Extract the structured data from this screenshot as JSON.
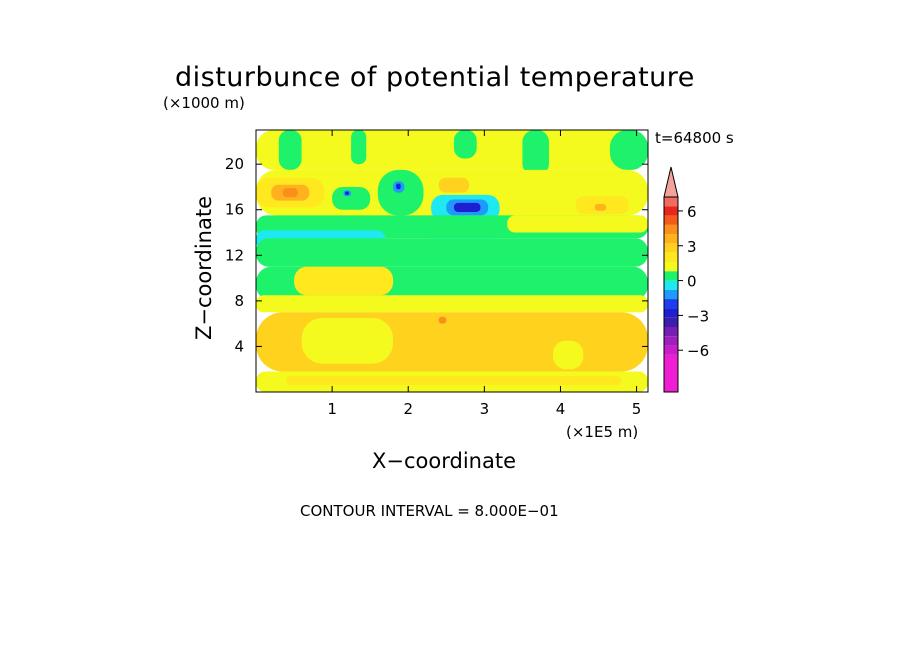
{
  "chart_data": {
    "type": "heatmap",
    "title": "disturbunce of potential temperature",
    "y_unit": "(×1000 m)",
    "x_unit": "(×1E5 m)",
    "xlabel": "X−coordinate",
    "ylabel": "Z−coordinate",
    "time_label": "t=64800 s",
    "footer": "CONTOUR INTERVAL = 8.000E−01",
    "xlim": [
      0,
      5.15
    ],
    "ylim": [
      0,
      23
    ],
    "x_ticks": [
      1,
      2,
      3,
      4,
      5
    ],
    "y_ticks": [
      4,
      8,
      12,
      16,
      20
    ],
    "colorbar": {
      "tick_values": [
        6,
        3,
        0,
        -3,
        -6
      ],
      "tick_labels": [
        "6",
        "3",
        "0",
        "−3",
        "−6"
      ],
      "levels": [
        {
          "from": 7.2,
          "to": 9.6,
          "color": "#f4a39a"
        },
        {
          "from": 6.4,
          "to": 7.2,
          "color": "#f26a60"
        },
        {
          "from": 5.6,
          "to": 6.4,
          "color": "#e8271c"
        },
        {
          "from": 4.8,
          "to": 5.6,
          "color": "#f25c18"
        },
        {
          "from": 4.0,
          "to": 4.8,
          "color": "#fa8f1c"
        },
        {
          "from": 3.2,
          "to": 4.0,
          "color": "#ffb21e"
        },
        {
          "from": 2.4,
          "to": 3.2,
          "color": "#ffd21e"
        },
        {
          "from": 1.6,
          "to": 2.4,
          "color": "#ffe81e"
        },
        {
          "from": 0.8,
          "to": 1.6,
          "color": "#f5fa1e"
        },
        {
          "from": 0.0,
          "to": 0.8,
          "color": "#1ef26a"
        },
        {
          "from": -0.8,
          "to": 0.0,
          "color": "#1ee8f0"
        },
        {
          "from": -1.6,
          "to": -0.8,
          "color": "#1e9afa"
        },
        {
          "from": -2.4,
          "to": -1.6,
          "color": "#1e3cf0"
        },
        {
          "from": -3.2,
          "to": -2.4,
          "color": "#1e1ed2"
        },
        {
          "from": -4.0,
          "to": -3.2,
          "color": "#3c1eaa"
        },
        {
          "from": -4.8,
          "to": -4.0,
          "color": "#781eb4"
        },
        {
          "from": -5.6,
          "to": -4.8,
          "color": "#a01ebe"
        },
        {
          "from": -6.4,
          "to": -5.6,
          "color": "#c81ec8"
        },
        {
          "from": -9.6,
          "to": -6.4,
          "color": "#f01ed2"
        }
      ]
    },
    "regions": [
      {
        "level": 1.2,
        "x": [
          0,
          5.15
        ],
        "z": [
          19.5,
          23
        ]
      },
      {
        "level": 0.4,
        "x": [
          0.3,
          0.6
        ],
        "z": [
          19.5,
          23
        ]
      },
      {
        "level": 0.4,
        "x": [
          1.25,
          1.45
        ],
        "z": [
          20,
          23
        ]
      },
      {
        "level": 0.4,
        "x": [
          2.6,
          2.9
        ],
        "z": [
          20.5,
          23
        ]
      },
      {
        "level": 0.4,
        "x": [
          3.5,
          3.85
        ],
        "z": [
          19,
          23
        ]
      },
      {
        "level": 0.4,
        "x": [
          4.65,
          5.15
        ],
        "z": [
          19.5,
          23
        ]
      },
      {
        "level": 1.2,
        "x": [
          0,
          5.15
        ],
        "z": [
          15.5,
          19.5
        ]
      },
      {
        "level": 2.0,
        "x": [
          0,
          0.9
        ],
        "z": [
          16.2,
          18.8
        ]
      },
      {
        "level": 3.6,
        "x": [
          0.2,
          0.7
        ],
        "z": [
          16.8,
          18.2
        ]
      },
      {
        "level": 4.4,
        "x": [
          0.35,
          0.55
        ],
        "z": [
          17.1,
          17.9
        ]
      },
      {
        "level": 0.4,
        "x": [
          1.0,
          1.5
        ],
        "z": [
          16.0,
          18.0
        ]
      },
      {
        "level": -1.2,
        "x": [
          1.15,
          1.25
        ],
        "z": [
          17.2,
          17.7
        ]
      },
      {
        "level": -2.8,
        "x": [
          1.17,
          1.22
        ],
        "z": [
          17.3,
          17.6
        ]
      },
      {
        "level": 0.4,
        "x": [
          1.6,
          2.2
        ],
        "z": [
          15.5,
          19.5
        ]
      },
      {
        "level": -1.2,
        "x": [
          1.8,
          1.95
        ],
        "z": [
          17.5,
          18.5
        ]
      },
      {
        "level": -2.8,
        "x": [
          1.84,
          1.9
        ],
        "z": [
          17.8,
          18.3
        ]
      },
      {
        "level": 2.8,
        "x": [
          2.4,
          2.8
        ],
        "z": [
          17.5,
          18.8
        ]
      },
      {
        "level": -0.4,
        "x": [
          2.3,
          3.2
        ],
        "z": [
          15.0,
          17.3
        ]
      },
      {
        "level": -1.2,
        "x": [
          2.5,
          3.05
        ],
        "z": [
          15.5,
          16.9
        ]
      },
      {
        "level": -2.8,
        "x": [
          2.6,
          2.95
        ],
        "z": [
          15.8,
          16.6
        ]
      },
      {
        "level": 2.0,
        "x": [
          4.2,
          4.9
        ],
        "z": [
          15.6,
          17.2
        ]
      },
      {
        "level": 3.6,
        "x": [
          4.45,
          4.6
        ],
        "z": [
          15.9,
          16.5
        ]
      },
      {
        "level": 0.4,
        "x": [
          0,
          5.15
        ],
        "z": [
          13.5,
          15.5
        ]
      },
      {
        "level": 1.2,
        "x": [
          3.3,
          5.15
        ],
        "z": [
          14.0,
          15.5
        ]
      },
      {
        "level": -0.4,
        "x": [
          0,
          1.7
        ],
        "z": [
          12.5,
          14.2
        ]
      },
      {
        "level": -0.4,
        "x": [
          2.2,
          3.2
        ],
        "z": [
          12.2,
          13.5
        ]
      },
      {
        "level": 0.4,
        "x": [
          0,
          5.15
        ],
        "z": [
          11.0,
          13.5
        ]
      },
      {
        "level": 0.4,
        "x": [
          0,
          5.15
        ],
        "z": [
          8.0,
          11.0
        ]
      },
      {
        "level": 2.0,
        "x": [
          0.5,
          1.8
        ],
        "z": [
          8.5,
          11.0
        ]
      },
      {
        "level": 1.2,
        "x": [
          0,
          5.15
        ],
        "z": [
          7.0,
          8.5
        ]
      },
      {
        "level": 2.8,
        "x": [
          0,
          5.15
        ],
        "z": [
          1.8,
          7.0
        ]
      },
      {
        "level": 1.2,
        "x": [
          0.6,
          1.8
        ],
        "z": [
          2.5,
          6.5
        ]
      },
      {
        "level": 1.2,
        "x": [
          3.9,
          4.3
        ],
        "z": [
          2.0,
          4.5
        ]
      },
      {
        "level": 4.4,
        "x": [
          2.4,
          2.5
        ],
        "z": [
          6.0,
          6.6
        ]
      },
      {
        "level": 1.2,
        "x": [
          0,
          5.15
        ],
        "z": [
          0,
          1.8
        ]
      },
      {
        "level": 2.0,
        "x": [
          0.4,
          4.8
        ],
        "z": [
          0.6,
          1.4
        ]
      }
    ]
  }
}
